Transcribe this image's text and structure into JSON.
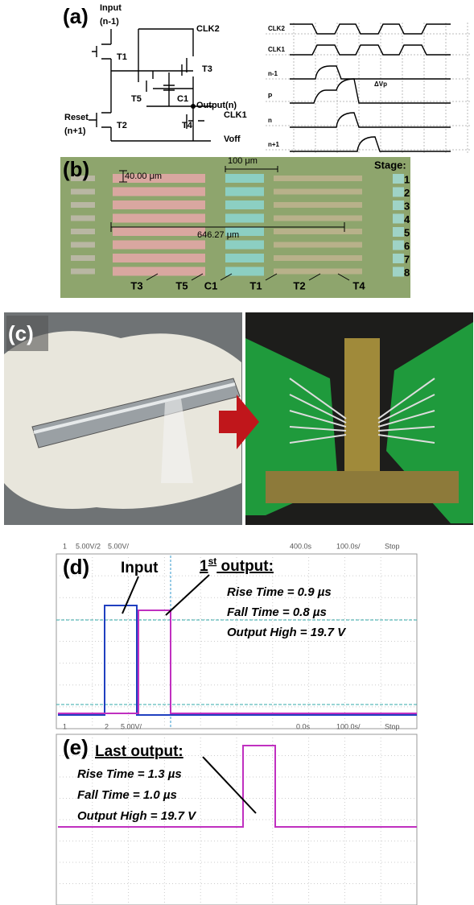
{
  "panel_a": {
    "label": "(a)",
    "circuit": {
      "input": "Input",
      "input_index": "(n-1)",
      "reset": "Reset",
      "reset_index": "(n+1)",
      "clk2": "CLK2",
      "clk1": "CLK1",
      "voff": "Voff",
      "output": "Output(n)",
      "t1": "T1",
      "t2": "T2",
      "t3": "T3",
      "t4": "T4",
      "t5": "T5",
      "c1": "C1"
    },
    "timing": {
      "signals": [
        "CLK2",
        "CLK1",
        "n-1",
        "P",
        "n",
        "n+1"
      ],
      "delta": "ΔVp"
    }
  },
  "panel_b": {
    "label": "(b)",
    "scale_small": "40.00 μm",
    "scale_large": "100 μm",
    "span": "646.27 μm",
    "stage_title": "Stage:",
    "stages": [
      "1",
      "2",
      "3",
      "4",
      "5",
      "6",
      "7",
      "8"
    ],
    "parts": [
      "T3",
      "T5",
      "C1",
      "T1",
      "T2",
      "T4"
    ]
  },
  "panel_c": {
    "label": "(c)"
  },
  "panel_d": {
    "label": "(d)",
    "header": [
      "1",
      "5.00V/",
      "2",
      "5.00V/",
      "400.0s",
      "100.0s/",
      "Stop"
    ],
    "input": "Input",
    "output_title": "1",
    "output_title_sup": "st",
    "output_title_rest": " output:",
    "stats": [
      "Rise Time = 0.9 µs",
      "Fall Time = 0.8 µs",
      "Output High = 19.7 V"
    ]
  },
  "panel_e": {
    "label": "(e)",
    "header": [
      "1",
      "2",
      "5.00V/",
      "0.0s",
      "100.0s/",
      "Stop"
    ],
    "title": "Last output:",
    "stats": [
      "Rise Time = 1.3 µs",
      "Fall Time = 1.0 µs",
      "Output High = 19.7 V"
    ]
  }
}
